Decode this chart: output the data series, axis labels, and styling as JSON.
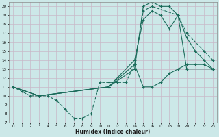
{
  "xlabel": "Humidex (Indice chaleur)",
  "bg_color": "#cce8e8",
  "line_color": "#1a6b5a",
  "grid_color": "#b8d8d8",
  "xlim": [
    -0.5,
    23.5
  ],
  "ylim": [
    7,
    20.5
  ],
  "yticks": [
    7,
    8,
    9,
    10,
    11,
    12,
    13,
    14,
    15,
    16,
    17,
    18,
    19,
    20
  ],
  "xticks": [
    0,
    1,
    2,
    3,
    4,
    5,
    6,
    7,
    8,
    9,
    10,
    11,
    12,
    13,
    14,
    15,
    16,
    17,
    18,
    19,
    20,
    21,
    22,
    23
  ],
  "series": [
    {
      "x": [
        0,
        1,
        2,
        3,
        4,
        5,
        6,
        7,
        8,
        9,
        10,
        11,
        12,
        13,
        14,
        15,
        16,
        19,
        20,
        22,
        23
      ],
      "y": [
        11,
        10.5,
        10,
        10,
        10,
        9.5,
        8.5,
        7.5,
        7.5,
        8,
        11.5,
        11.5,
        11.5,
        11.5,
        13.5,
        19.5,
        20,
        19,
        17,
        15,
        14
      ],
      "linestyle": "--",
      "marker": "+"
    },
    {
      "x": [
        0,
        3,
        11,
        14,
        15,
        16,
        17,
        18,
        19,
        20,
        21,
        22,
        23
      ],
      "y": [
        11,
        10,
        11,
        13,
        20,
        20.5,
        20,
        20,
        19,
        16.5,
        15,
        14,
        13
      ],
      "linestyle": "-",
      "marker": "+"
    },
    {
      "x": [
        0,
        3,
        11,
        14,
        15,
        16,
        17,
        18,
        19,
        20,
        23
      ],
      "y": [
        11,
        10,
        11,
        14,
        18.5,
        19.5,
        19,
        17.5,
        19,
        13,
        13
      ],
      "linestyle": "-",
      "marker": "+"
    },
    {
      "x": [
        0,
        3,
        11,
        14,
        15,
        16,
        17,
        18,
        19,
        20,
        21,
        22,
        23
      ],
      "y": [
        11,
        10,
        11,
        13.5,
        11,
        11,
        11.5,
        12.5,
        13,
        13.5,
        13.5,
        13.5,
        13
      ],
      "linestyle": "-",
      "marker": "+"
    }
  ]
}
